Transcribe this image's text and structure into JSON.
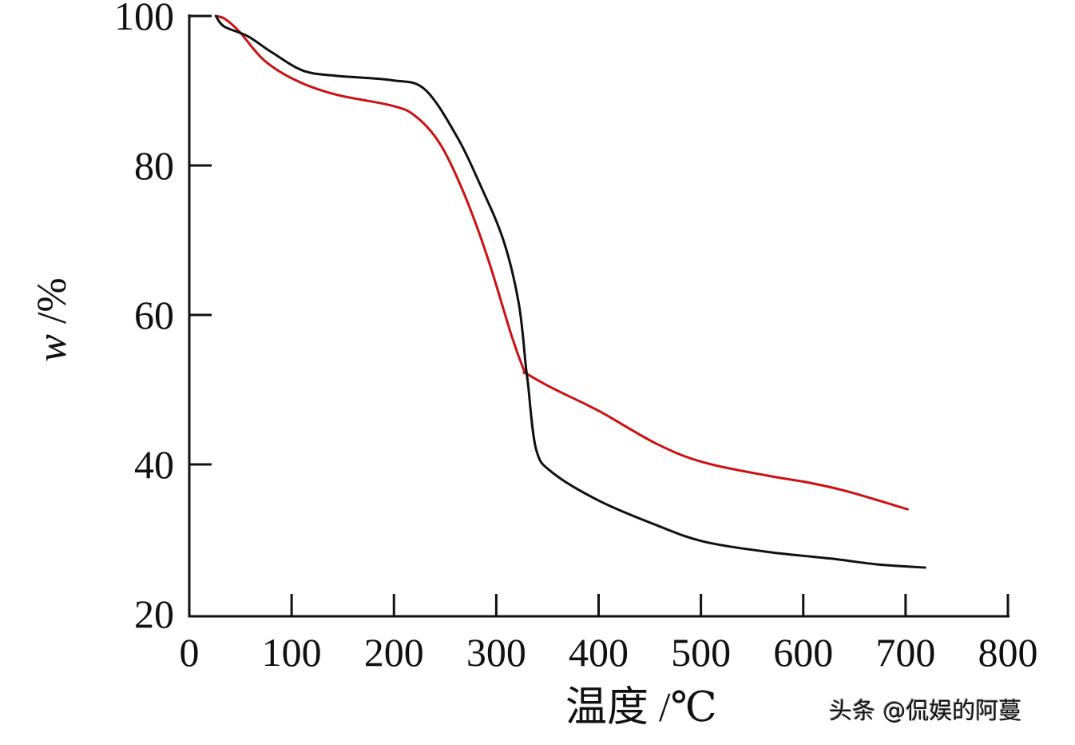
{
  "chart_data": {
    "type": "line",
    "title": "",
    "xlabel": "温度 /℃",
    "ylabel": "w /%",
    "xlim": [
      0,
      800
    ],
    "ylim": [
      20,
      100
    ],
    "x_ticks": [
      0,
      100,
      200,
      300,
      400,
      500,
      600,
      700,
      800
    ],
    "y_ticks": [
      20,
      40,
      60,
      80,
      100
    ],
    "grid": false,
    "legend": null,
    "series": [
      {
        "name": "black curve",
        "color": "#111111",
        "x": [
          26,
          34,
          57,
          80,
          111,
          143,
          198,
          230,
          261,
          284,
          307,
          322,
          329,
          331,
          339,
          355,
          401,
          456,
          502,
          565,
          627,
          674,
          719
        ],
        "y": [
          100,
          98.6,
          97.3,
          95.2,
          92.7,
          92.0,
          91.4,
          90.2,
          84.0,
          77.5,
          70.0,
          61.5,
          53.0,
          50.8,
          42.0,
          38.9,
          35.1,
          31.9,
          29.7,
          28.3,
          27.4,
          26.6,
          26.2
        ]
      },
      {
        "name": "red curve",
        "color": "#cc1111",
        "x": [
          26,
          35,
          49,
          73,
          104,
          143,
          198,
          221,
          245,
          268,
          291,
          315,
          327,
          329,
          355,
          401,
          456,
          502,
          565,
          604,
          643,
          702
        ],
        "y": [
          100,
          99.6,
          97.9,
          94.1,
          91.4,
          89.5,
          88.0,
          86.6,
          82.9,
          76.4,
          67.9,
          57.2,
          52.6,
          52.2,
          50.2,
          47.1,
          42.8,
          40.3,
          38.5,
          37.6,
          36.4,
          34.0
        ]
      }
    ]
  },
  "axes": {
    "x_tick_labels": [
      "0",
      "100",
      "200",
      "300",
      "400",
      "500",
      "600",
      "700",
      "800"
    ],
    "y_tick_labels": [
      "20",
      "40",
      "60",
      "80",
      "100"
    ],
    "x_title": "温度 /℃",
    "y_title_var": "w",
    "y_title_unit": " /%"
  },
  "watermark": "头条 @侃娱的阿蔓"
}
